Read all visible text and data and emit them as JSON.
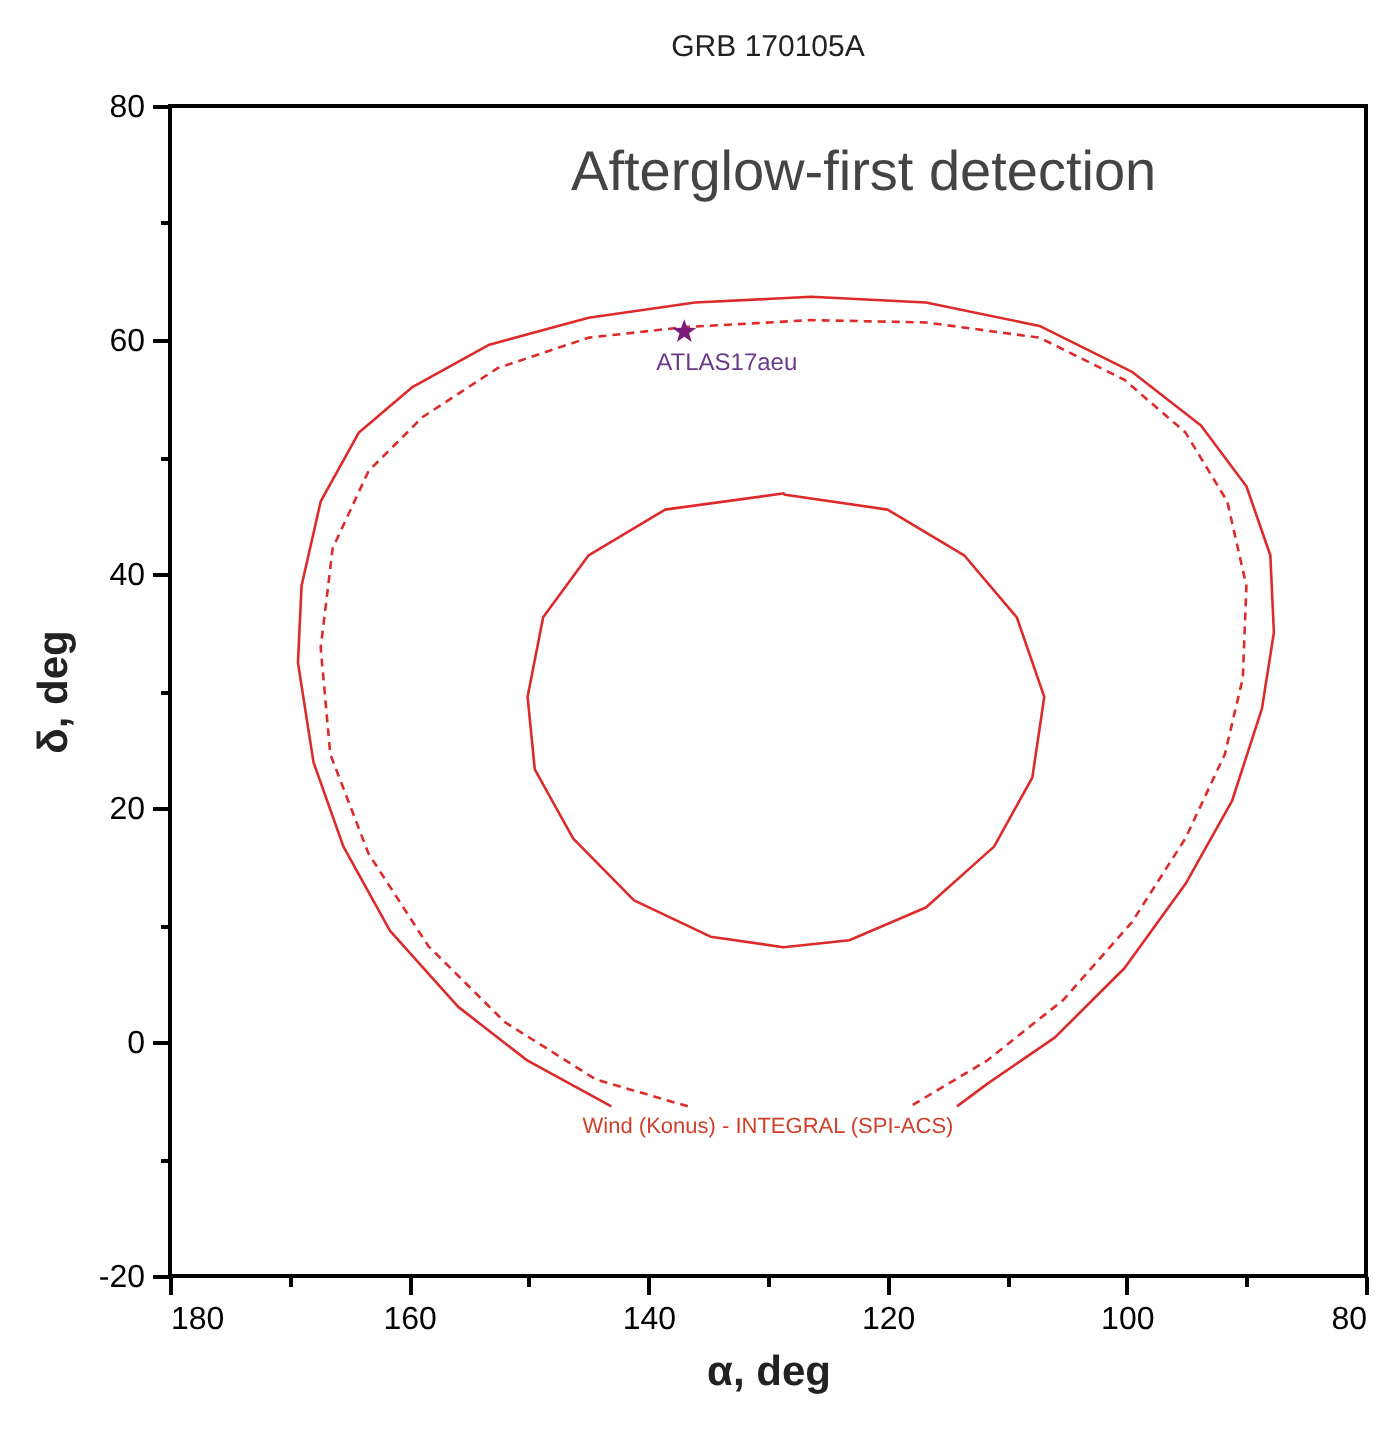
{
  "chart_data": {
    "type": "line",
    "title": "GRB  170105A",
    "xlabel": "α, deg",
    "ylabel": "δ, deg",
    "xlim": [
      180,
      80
    ],
    "ylim": [
      -20,
      80
    ],
    "xticks": [
      180,
      {
        "value": 170,
        "label": null
      },
      160,
      {
        "value": 150,
        "label": null
      },
      140,
      {
        "value": 130,
        "label": null
      },
      120,
      {
        "value": 110,
        "label": null
      },
      100,
      {
        "value": 90,
        "label": null
      },
      80
    ],
    "yticks": [
      -20,
      {
        "value": -10,
        "label": null
      },
      0,
      {
        "value": 10,
        "label": null
      },
      20,
      {
        "value": 30,
        "label": null
      },
      40,
      {
        "value": 50,
        "label": null
      },
      60,
      {
        "value": 70,
        "label": null
      },
      80
    ],
    "grid": false,
    "series": [
      {
        "color": "#dd2a2a",
        "line_style": "solid",
        "x": [
          143.1,
          150.1,
          155.9,
          161.6,
          165.5,
          168.0,
          169.3,
          169.0,
          167.4,
          164.2,
          159.7,
          153.3,
          145.0,
          136.1,
          126.4,
          116.8,
          107.3,
          99.6,
          93.8,
          90.0,
          88.0,
          87.7,
          88.7,
          91.2,
          95.1,
          100.2,
          106.0,
          111.7,
          114.2
        ],
        "values": [
          -5.5,
          -1.6,
          3.0,
          9.5,
          16.7,
          23.9,
          32.4,
          39.0,
          46.2,
          52.1,
          56.0,
          59.6,
          61.9,
          63.2,
          63.7,
          63.2,
          61.2,
          57.3,
          52.7,
          47.5,
          41.6,
          35.0,
          28.5,
          20.6,
          13.5,
          6.3,
          0.4,
          -3.6,
          -5.5
        ]
      },
      {
        "color": "#dd2a2a",
        "line_style": "dashed",
        "x": [
          136.7,
          144.4,
          152.0,
          158.4,
          163.4,
          166.6,
          167.4,
          166.4,
          163.4,
          158.9,
          152.6,
          145.0,
          137.0,
          126.4,
          116.8,
          107.3,
          100.2,
          95.1,
          91.6,
          90.0,
          90.3,
          91.8,
          95.1,
          99.6,
          105.3,
          111.7,
          118.1
        ],
        "values": [
          -5.5,
          -3.2,
          1.7,
          8.2,
          16.1,
          24.6,
          33.7,
          42.2,
          48.8,
          53.4,
          57.6,
          60.2,
          61.1,
          61.7,
          61.5,
          60.2,
          56.6,
          52.1,
          46.2,
          39.0,
          31.1,
          24.6,
          17.4,
          10.2,
          3.6,
          -1.6,
          -5.5
        ]
      },
      {
        "color": "#dd2a2a",
        "line_style": "solid",
        "x": [
          128.7,
          120.0,
          113.6,
          109.2,
          106.9,
          107.9,
          111.1,
          116.8,
          123.2,
          128.7,
          134.8,
          141.2,
          146.3,
          149.5,
          150.1,
          148.8,
          145.0,
          138.6,
          128.6
        ],
        "values": [
          46.8,
          45.5,
          41.6,
          36.3,
          29.5,
          22.6,
          16.7,
          11.5,
          8.7,
          8.1,
          9.0,
          12.1,
          17.4,
          23.3,
          29.5,
          36.3,
          41.6,
          45.5,
          46.9
        ]
      },
      {
        "type": "scatter",
        "color": "#7b1a7b",
        "marker": "star",
        "x": [
          137.0
        ],
        "values": [
          60.7
        ]
      }
    ],
    "annotations": [
      "Afterglow-first detection",
      {
        "text": "ATLAS17aeu",
        "x": 137.0,
        "y": 60.7
      },
      "Wind (Konus) - INTEGRAL (SPI-ACS)"
    ]
  }
}
